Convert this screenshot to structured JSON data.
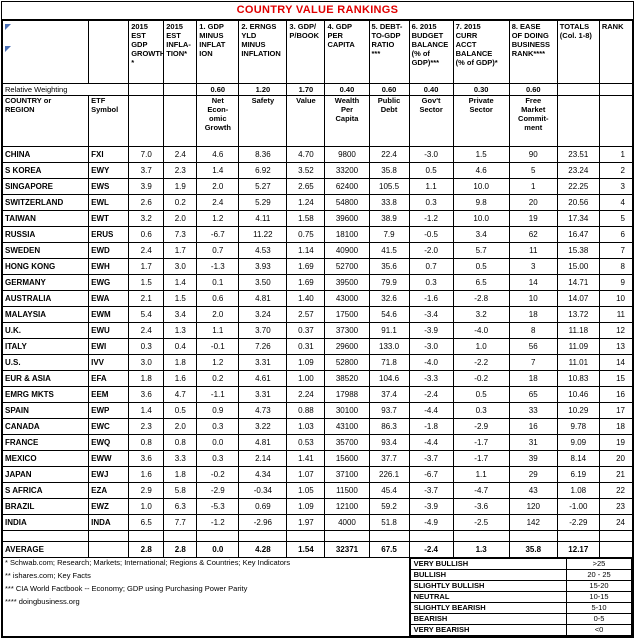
{
  "chart_data": {
    "type": "table",
    "title": "COUNTRY VALUE RANKINGS",
    "title_color": "#e00000",
    "weighting_label": "Relative Weighting",
    "columns": [
      {
        "key": "country",
        "top": "",
        "sub": "COUNTRY or\nREGION",
        "weight": ""
      },
      {
        "key": "etf-symbol",
        "top": "",
        "sub": "ETF Symbol",
        "weight": ""
      },
      {
        "key": "gdp-growth",
        "top": "2015\nEST GDP\nGROWTH\n*",
        "sub": "",
        "weight": ""
      },
      {
        "key": "inflation",
        "top": "2015\nEST\nINFLA-\nTION*",
        "sub": "",
        "weight": ""
      },
      {
        "key": "net-growth",
        "top": "1. GDP\nMINUS\nINFLAT\nION",
        "sub": "Net\nEcon-\nomic\nGrowth",
        "weight": "0.60"
      },
      {
        "key": "safety",
        "top": "2. ERNGS\nYLD\nMINUS\nINFLATION",
        "sub": "Safety",
        "weight": "1.20"
      },
      {
        "key": "value",
        "top": "3. GDP/\nP/BOOK",
        "sub": "Value",
        "weight": "1.70"
      },
      {
        "key": "gdp-per-capita",
        "top": "4. GDP\nPER\nCAPITA",
        "sub": "Wealth\nPer\nCapita",
        "weight": "0.40"
      },
      {
        "key": "debt-to-gdp",
        "top": "5. DEBT-\nTO-GDP\nRATIO\n***",
        "sub": "Public\nDebt",
        "weight": "0.60"
      },
      {
        "key": "budget-balance",
        "top": "6. 2015\nBUDGET\nBALANCE\n(% of\nGDP)***",
        "sub": "Gov't\nSector",
        "weight": "0.40"
      },
      {
        "key": "curr-acct-balance",
        "top": "7. 2015\nCURR\nACCT\nBALANCE\n(% of GDP)*",
        "sub": "Private\nSector",
        "weight": "0.30"
      },
      {
        "key": "ease-of-business",
        "top": "8. EASE\nOF DOING\nBUSINESS\nRANK****",
        "sub": "Free\nMarket\nCommit-\nment",
        "weight": "0.60"
      },
      {
        "key": "totals",
        "top": "TOTALS\n(Col. 1-8)",
        "sub": "",
        "weight": ""
      },
      {
        "key": "rank",
        "top": "RANK",
        "sub": "",
        "weight": ""
      }
    ],
    "rows": [
      [
        "CHINA",
        "FXI",
        "7.0",
        "2.4",
        "4.6",
        "8.36",
        "4.70",
        "9800",
        "22.4",
        "-3.0",
        "1.5",
        "90",
        "23.51",
        "1"
      ],
      [
        "S KOREA",
        "EWY",
        "3.7",
        "2.3",
        "1.4",
        "6.92",
        "3.52",
        "33200",
        "35.8",
        "0.5",
        "4.6",
        "5",
        "23.24",
        "2"
      ],
      [
        "SINGAPORE",
        "EWS",
        "3.9",
        "1.9",
        "2.0",
        "5.27",
        "2.65",
        "62400",
        "105.5",
        "1.1",
        "10.0",
        "1",
        "22.25",
        "3"
      ],
      [
        "SWITZERLAND",
        "EWL",
        "2.6",
        "0.2",
        "2.4",
        "5.29",
        "1.24",
        "54800",
        "33.8",
        "0.3",
        "9.8",
        "20",
        "20.56",
        "4"
      ],
      [
        "TAIWAN",
        "EWT",
        "3.2",
        "2.0",
        "1.2",
        "4.11",
        "1.58",
        "39600",
        "38.9",
        "-1.2",
        "10.0",
        "19",
        "17.34",
        "5"
      ],
      [
        "RUSSIA",
        "ERUS",
        "0.6",
        "7.3",
        "-6.7",
        "11.22",
        "0.75",
        "18100",
        "7.9",
        "-0.5",
        "3.4",
        "62",
        "16.47",
        "6"
      ],
      [
        "SWEDEN",
        "EWD",
        "2.4",
        "1.7",
        "0.7",
        "4.53",
        "1.14",
        "40900",
        "41.5",
        "-2.0",
        "5.7",
        "11",
        "15.38",
        "7"
      ],
      [
        "HONG KONG",
        "EWH",
        "1.7",
        "3.0",
        "-1.3",
        "3.93",
        "1.69",
        "52700",
        "35.6",
        "0.7",
        "0.5",
        "3",
        "15.00",
        "8"
      ],
      [
        "GERMANY",
        "EWG",
        "1.5",
        "1.4",
        "0.1",
        "3.50",
        "1.69",
        "39500",
        "79.9",
        "0.3",
        "6.5",
        "14",
        "14.71",
        "9"
      ],
      [
        "AUSTRALIA",
        "EWA",
        "2.1",
        "1.5",
        "0.6",
        "4.81",
        "1.40",
        "43000",
        "32.6",
        "-1.6",
        "-2.8",
        "10",
        "14.07",
        "10"
      ],
      [
        "MALAYSIA",
        "EWM",
        "5.4",
        "3.4",
        "2.0",
        "3.24",
        "2.57",
        "17500",
        "54.6",
        "-3.4",
        "3.2",
        "18",
        "13.72",
        "11"
      ],
      [
        "U.K.",
        "EWU",
        "2.4",
        "1.3",
        "1.1",
        "3.70",
        "0.37",
        "37300",
        "91.1",
        "-3.9",
        "-4.0",
        "8",
        "11.18",
        "12"
      ],
      [
        "ITALY",
        "EWI",
        "0.3",
        "0.4",
        "-0.1",
        "7.26",
        "0.31",
        "29600",
        "133.0",
        "-3.0",
        "1.0",
        "56",
        "11.09",
        "13"
      ],
      [
        "U.S.",
        "IVV",
        "3.0",
        "1.8",
        "1.2",
        "3.31",
        "1.09",
        "52800",
        "71.8",
        "-4.0",
        "-2.2",
        "7",
        "11.01",
        "14"
      ],
      [
        "EUR & ASIA",
        "EFA",
        "1.8",
        "1.6",
        "0.2",
        "4.61",
        "1.00",
        "38520",
        "104.6",
        "-3.3",
        "-0.2",
        "18",
        "10.83",
        "15"
      ],
      [
        "EMRG MKTS",
        "EEM",
        "3.6",
        "4.7",
        "-1.1",
        "3.31",
        "2.24",
        "17988",
        "37.4",
        "-2.4",
        "0.5",
        "65",
        "10.46",
        "16"
      ],
      [
        "SPAIN",
        "EWP",
        "1.4",
        "0.5",
        "0.9",
        "4.73",
        "0.88",
        "30100",
        "93.7",
        "-4.4",
        "0.3",
        "33",
        "10.29",
        "17"
      ],
      [
        "CANADA",
        "EWC",
        "2.3",
        "2.0",
        "0.3",
        "3.22",
        "1.03",
        "43100",
        "86.3",
        "-1.8",
        "-2.9",
        "16",
        "9.78",
        "18"
      ],
      [
        "FRANCE",
        "EWQ",
        "0.8",
        "0.8",
        "0.0",
        "4.81",
        "0.53",
        "35700",
        "93.4",
        "-4.4",
        "-1.7",
        "31",
        "9.09",
        "19"
      ],
      [
        "MEXICO",
        "EWW",
        "3.6",
        "3.3",
        "0.3",
        "2.14",
        "1.41",
        "15600",
        "37.7",
        "-3.7",
        "-1.7",
        "39",
        "8.14",
        "20"
      ],
      [
        "JAPAN",
        "EWJ",
        "1.6",
        "1.8",
        "-0.2",
        "4.34",
        "1.07",
        "37100",
        "226.1",
        "-6.7",
        "1.1",
        "29",
        "6.19",
        "21"
      ],
      [
        "S AFRICA",
        "EZA",
        "2.9",
        "5.8",
        "-2.9",
        "-0.34",
        "1.05",
        "11500",
        "45.4",
        "-3.7",
        "-4.7",
        "43",
        "1.08",
        "22"
      ],
      [
        "BRAZIL",
        "EWZ",
        "1.0",
        "6.3",
        "-5.3",
        "0.69",
        "1.09",
        "12100",
        "59.2",
        "-3.9",
        "-3.6",
        "120",
        "-1.00",
        "23"
      ],
      [
        "INDIA",
        "INDA",
        "6.5",
        "7.7",
        "-1.2",
        "-2.96",
        "1.97",
        "4000",
        "51.8",
        "-4.9",
        "-2.5",
        "142",
        "-2.29",
        "24"
      ]
    ],
    "average_row": [
      "AVERAGE",
      "",
      "2.8",
      "2.8",
      "0.0",
      "4.28",
      "1.54",
      "32371",
      "67.5",
      "-2.4",
      "1.3",
      "35.8",
      "12.17",
      ""
    ],
    "footnotes": [
      "* Schwab.com; Research; Markets; International; Regions & Countries; Key Indicators",
      "** ishares.com; Key Facts",
      "*** CIA World Factbook -- Economy; GDP using Purchasing Power Parity",
      "**** doingbusiness.org"
    ],
    "legend": [
      {
        "label": "VERY BULLISH",
        "range": ">25"
      },
      {
        "label": "BULLISH",
        "range": "20 - 25"
      },
      {
        "label": "SLIGHTLY BULLISH",
        "range": "15-20"
      },
      {
        "label": "NEUTRAL",
        "range": "10-15"
      },
      {
        "label": "SLIGHTLY BEARISH",
        "range": "5-10"
      },
      {
        "label": "BEARISH",
        "range": "0-5"
      },
      {
        "label": "VERY BEARISH",
        "range": "<0"
      }
    ]
  }
}
